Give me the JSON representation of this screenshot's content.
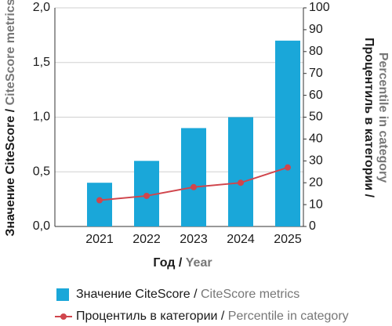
{
  "chart_data": {
    "type": "bar-line",
    "categories": [
      "2021",
      "2022",
      "2023",
      "2024",
      "2025"
    ],
    "x_label": "Год /",
    "x_label_en": "Year",
    "y_label": "Значение CiteScore /",
    "y_label_en": "CiteScore metrics",
    "y2_label": "Процентиль в категории /",
    "y2_label_en": "Percentile in category",
    "series": [
      {
        "name": "Значение CiteScore /",
        "name_en": "CiteScore metrics",
        "color": "#1aa7d9",
        "kind": "bar",
        "values": [
          0.4,
          0.6,
          0.9,
          1.0,
          1.7
        ]
      },
      {
        "name": "Процентиль в категории /",
        "name_en": "Percentile in category",
        "color": "#d0454c",
        "kind": "line",
        "axis": "y2",
        "values": [
          12,
          14,
          18,
          20,
          27
        ]
      }
    ],
    "ylim": [
      0,
      2
    ],
    "yticks": [
      {
        "value": 0,
        "label": "0,0"
      },
      {
        "value": 0.5,
        "label": "0,5"
      },
      {
        "value": 1,
        "label": "1,0"
      },
      {
        "value": 1.5,
        "label": "1,5"
      },
      {
        "value": 2,
        "label": "2,0"
      }
    ],
    "y2lim": [
      0,
      100
    ],
    "y2ticks": [
      0,
      10,
      20,
      30,
      40,
      50,
      60,
      70,
      80,
      90,
      100
    ],
    "grid": true
  }
}
